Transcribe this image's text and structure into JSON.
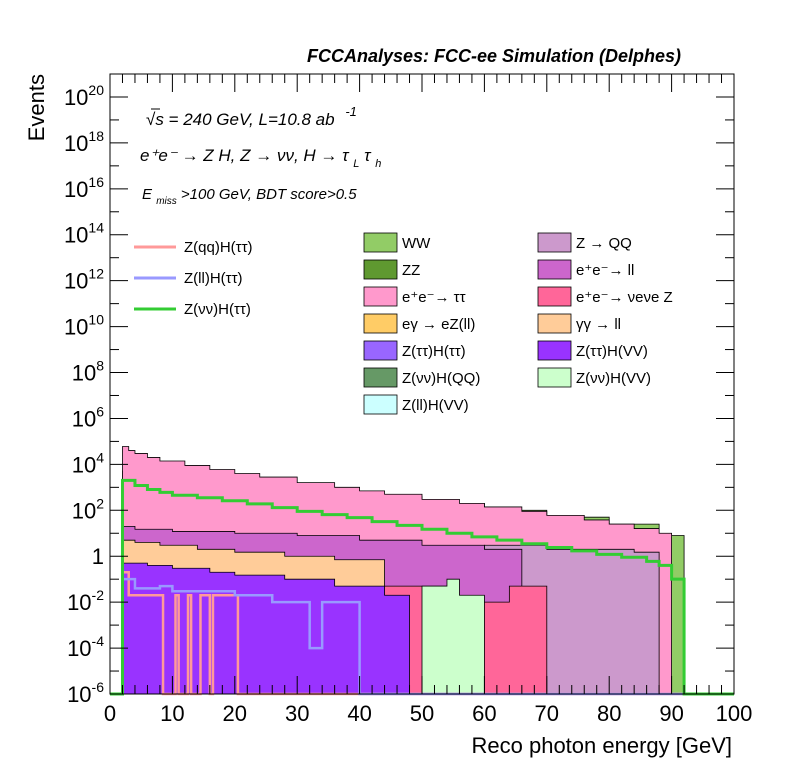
{
  "chart_data": {
    "type": "area",
    "title": "FCCAnalyses: FCC-ee Simulation (Delphes)",
    "xlabel": "Reco photon energy [GeV]",
    "ylabel": "Events",
    "xlim": [
      0,
      100
    ],
    "ylim": [
      1e-06,
      1e+21
    ],
    "log_y": true,
    "grid": false,
    "x_ticks": [
      "0",
      "10",
      "20",
      "30",
      "40",
      "50",
      "60",
      "70",
      "80",
      "90",
      "100"
    ],
    "y_ticks": [
      {
        "mant": "10",
        "exp": "-6"
      },
      {
        "mant": "10",
        "exp": "-4"
      },
      {
        "mant": "10",
        "exp": "-2"
      },
      {
        "mant": "1",
        "exp": ""
      },
      {
        "mant": "10",
        "exp": "2"
      },
      {
        "mant": "10",
        "exp": "4"
      },
      {
        "mant": "10",
        "exp": "6"
      },
      {
        "mant": "10",
        "exp": "8"
      },
      {
        "mant": "10",
        "exp": "10"
      },
      {
        "mant": "10",
        "exp": "12"
      },
      {
        "mant": "10",
        "exp": "14"
      },
      {
        "mant": "10",
        "exp": "16"
      },
      {
        "mant": "10",
        "exp": "18"
      },
      {
        "mant": "10",
        "exp": "20"
      }
    ],
    "annotations": {
      "line1": "√s = 240 GeV, L=10.8 ab",
      "line1_sup": "-1",
      "line2": "e⁺e⁻ → Z H, Z → νν, H → τ",
      "line2_sub": "L",
      "line2_end": "τ",
      "line2_sub2": "h",
      "line3_pre": "E",
      "line3_sub": "miss",
      "line3_post": ">100 GeV, BDT score>0.5"
    },
    "stacked_series": [
      {
        "name": "WW",
        "color": "#92cc66",
        "edges": [
          [
            2,
            5000.0
          ],
          [
            4,
            4000.0
          ],
          [
            6,
            3000.0
          ],
          [
            8,
            2000.0
          ],
          [
            12,
            1800.0
          ],
          [
            16,
            1500.0
          ],
          [
            20,
            1200.0
          ],
          [
            26,
            900.0
          ],
          [
            30,
            700.0
          ],
          [
            40,
            400.0
          ],
          [
            50,
            200.0
          ],
          [
            60,
            100.0
          ],
          [
            70,
            50.0
          ],
          [
            80,
            25.0
          ],
          [
            88,
            1
          ],
          [
            90,
            8
          ],
          [
            92,
            0
          ]
        ]
      },
      {
        "name": "ZZ",
        "color": "#5f9930",
        "edges": [
          [
            50,
            10.0
          ],
          [
            60,
            3
          ],
          [
            70,
            2
          ],
          [
            86,
            2
          ],
          [
            88,
            0
          ]
        ]
      },
      {
        "name": "e+e- → ττ",
        "color": "#ff99cc",
        "edges": [
          [
            2,
            60000.0
          ],
          [
            3,
            40000.0
          ],
          [
            4,
            30000.0
          ],
          [
            6,
            20000.0
          ],
          [
            8,
            14000.0
          ],
          [
            12,
            9000.0
          ],
          [
            16,
            6000.0
          ],
          [
            20,
            4000.0
          ],
          [
            24,
            2800.0
          ],
          [
            30,
            1600.0
          ],
          [
            36,
            1000.0
          ],
          [
            40,
            700.0
          ],
          [
            44,
            500.0
          ],
          [
            50,
            300.0
          ],
          [
            56,
            200.0
          ],
          [
            60,
            140.0
          ],
          [
            66,
            90.0
          ],
          [
            70,
            60.0
          ],
          [
            76,
            38.0
          ],
          [
            80,
            25.0
          ],
          [
            84,
            16.0
          ],
          [
            88,
            10.0
          ],
          [
            90,
            0
          ]
        ]
      },
      {
        "name": "eγ → eZ(ll)",
        "color": "#ffcc66",
        "edges": [
          [
            2,
            10.0
          ],
          [
            4,
            8
          ],
          [
            6,
            10.0
          ],
          [
            8,
            9
          ],
          [
            12,
            8
          ],
          [
            16,
            7
          ],
          [
            20,
            5
          ],
          [
            26,
            4
          ],
          [
            30,
            3
          ],
          [
            40,
            0.5
          ],
          [
            44,
            0
          ]
        ]
      },
      {
        "name": "Z(ττ)H(ττ)",
        "color": "#9966ff",
        "edges": [
          [
            2,
            0.2
          ],
          [
            6,
            0.3
          ],
          [
            10,
            0.2
          ],
          [
            14,
            0.15
          ],
          [
            20,
            0.1
          ],
          [
            24,
            0.09
          ],
          [
            30,
            0.05
          ],
          [
            34,
            0.04
          ],
          [
            44,
            0.02
          ],
          [
            48,
            0.015
          ],
          [
            54,
            0
          ]
        ]
      },
      {
        "name": "Z(νν)H(QQ)",
        "color": "#669966",
        "edges": [
          [
            2,
            0.3
          ],
          [
            6,
            0.2
          ],
          [
            10,
            0.1
          ],
          [
            14,
            0
          ]
        ]
      },
      {
        "name": "Z(ll)H(VV)",
        "color": "#ccffff",
        "edges": [
          [
            2,
            0.05
          ],
          [
            6,
            0.04
          ],
          [
            10,
            0.03
          ],
          [
            14,
            0.02
          ],
          [
            20,
            0.015
          ],
          [
            28,
            0.01
          ],
          [
            40,
            0.01
          ],
          [
            44,
            0.02
          ],
          [
            48,
            0
          ]
        ]
      },
      {
        "name": "Z → QQ",
        "color": "#cc99cc",
        "edges": [
          [
            60,
            3
          ],
          [
            70,
            2
          ],
          [
            84,
            1.5
          ],
          [
            88,
            0
          ]
        ]
      },
      {
        "name": "e+e- → ll",
        "color": "#cc66cc",
        "edges": [
          [
            2,
            20.0
          ],
          [
            4,
            15.0
          ],
          [
            10,
            12.0
          ],
          [
            20,
            10.0
          ],
          [
            30,
            8
          ],
          [
            40,
            5
          ],
          [
            50,
            3
          ],
          [
            60,
            2
          ],
          [
            66,
            0
          ]
        ]
      },
      {
        "name": "e+e- → νeνe Z",
        "color": "#ff6699",
        "edges": [
          [
            28,
            0.01
          ],
          [
            40,
            0.01
          ],
          [
            44,
            0.05
          ],
          [
            52,
            0.05
          ],
          [
            54,
            0.01
          ],
          [
            56,
            0.01
          ],
          [
            60,
            0.01
          ],
          [
            62,
            0.01
          ],
          [
            64,
            0.05
          ],
          [
            68,
            0.05
          ],
          [
            70,
            0
          ]
        ]
      },
      {
        "name": "γγ → ll",
        "color": "#ffcc99",
        "edges": [
          [
            2,
            5
          ],
          [
            4,
            4
          ],
          [
            8,
            3
          ],
          [
            14,
            2
          ],
          [
            20,
            1.5
          ],
          [
            28,
            1
          ],
          [
            36,
            0.7
          ],
          [
            44,
            0
          ]
        ]
      },
      {
        "name": "Z(ττ)H(VV)",
        "color": "#9933ff",
        "edges": [
          [
            2,
            0.5
          ],
          [
            6,
            0.4
          ],
          [
            10,
            0.3
          ],
          [
            16,
            0.2
          ],
          [
            20,
            0.15
          ],
          [
            28,
            0.1
          ],
          [
            36,
            0.05
          ],
          [
            44,
            0.02
          ],
          [
            48,
            0
          ]
        ]
      },
      {
        "name": "Z(νν)H(VV)",
        "color": "#ccffcc",
        "edges": [
          [
            50,
            0.05
          ],
          [
            54,
            0.1
          ],
          [
            56,
            0.02
          ],
          [
            60,
            0
          ]
        ]
      }
    ],
    "overlay_series": [
      {
        "name": "Z(qq)H(ττ)",
        "color": "#ff9999",
        "edges": [
          [
            2,
            0.2
          ],
          [
            3,
            0.02
          ],
          [
            8,
            0.02
          ],
          [
            8.5,
            1e-06
          ],
          [
            10,
            1e-06
          ],
          [
            10.5,
            0.02
          ],
          [
            11,
            1e-06
          ],
          [
            12,
            1e-06
          ],
          [
            12.5,
            0.02
          ],
          [
            13,
            1e-06
          ],
          [
            14,
            1e-06
          ],
          [
            14.5,
            0.02
          ],
          [
            15,
            0.02
          ],
          [
            16,
            1e-06
          ],
          [
            16.5,
            0.02
          ],
          [
            20,
            0.02
          ],
          [
            20.5,
            1e-06
          ],
          [
            100,
            1e-06
          ]
        ]
      },
      {
        "name": "Z(ll)H(ττ)",
        "color": "#9999ff",
        "edges": [
          [
            2,
            0.1
          ],
          [
            4,
            0.04
          ],
          [
            8,
            0.05
          ],
          [
            10,
            0.03
          ],
          [
            16,
            0.03
          ],
          [
            20,
            0.02
          ],
          [
            26,
            0.01
          ],
          [
            30,
            0.01
          ],
          [
            32,
            0.0001
          ],
          [
            34,
            0.01
          ],
          [
            38,
            0.01
          ],
          [
            40,
            1e-06
          ],
          [
            100,
            1e-06
          ]
        ]
      },
      {
        "name": "Z(νν)H(ττ)",
        "color": "#33cc33",
        "edges": [
          [
            0,
            1e-06
          ],
          [
            2,
            2000.0
          ],
          [
            4,
            1200.0
          ],
          [
            6,
            800.0
          ],
          [
            8,
            600.0
          ],
          [
            10,
            450.0
          ],
          [
            14,
            350.0
          ],
          [
            18,
            260.0
          ],
          [
            22,
            190.0
          ],
          [
            26,
            130.0
          ],
          [
            30,
            90.0
          ],
          [
            34,
            65.0
          ],
          [
            38,
            48.0
          ],
          [
            42,
            32.0
          ],
          [
            46,
            22.0
          ],
          [
            50,
            15.0
          ],
          [
            54,
            10.0
          ],
          [
            58,
            7
          ],
          [
            62,
            5
          ],
          [
            66,
            3.5
          ],
          [
            70,
            2.4
          ],
          [
            74,
            1.7
          ],
          [
            78,
            1.2
          ],
          [
            82,
            0.9
          ],
          [
            86,
            0.6
          ],
          [
            88,
            0.4
          ],
          [
            90,
            0.1
          ],
          [
            92,
            1e-06
          ],
          [
            100,
            1e-06
          ]
        ]
      }
    ],
    "legend": {
      "placement": "top-center",
      "lines": [
        "Z(qq)H(ττ)",
        "Z(ll)H(ττ)",
        "Z(νν)H(ττ)"
      ],
      "fills_col1": [
        "WW",
        "ZZ",
        "e⁺e⁻→ ττ",
        "eγ → eZ(ll)",
        "Z(ττ)H(ττ)",
        "Z(νν)H(QQ)",
        "Z(ll)H(VV)"
      ],
      "fills_col2": [
        "Z → QQ",
        "e⁺e⁻→ ll",
        "e⁺e⁻→ νeνe Z",
        "γγ → ll",
        "Z(ττ)H(VV)",
        "Z(νν)H(VV)"
      ]
    }
  }
}
